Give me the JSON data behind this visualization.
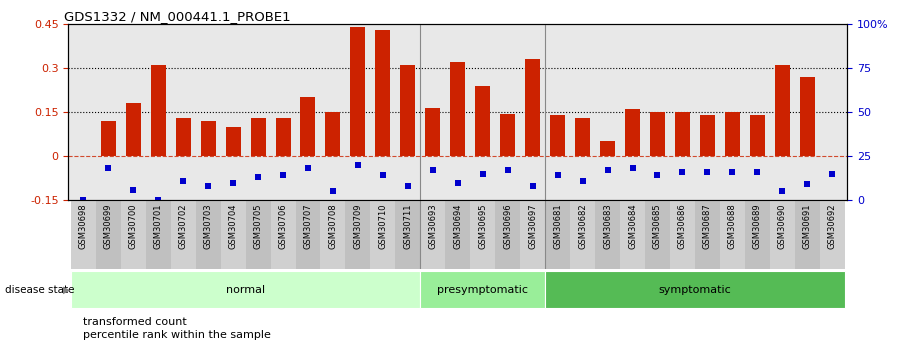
{
  "title": "GDS1332 / NM_000441.1_PROBE1",
  "samples": [
    "GSM30698",
    "GSM30699",
    "GSM30700",
    "GSM30701",
    "GSM30702",
    "GSM30703",
    "GSM30704",
    "GSM30705",
    "GSM30706",
    "GSM30707",
    "GSM30708",
    "GSM30709",
    "GSM30710",
    "GSM30711",
    "GSM30693",
    "GSM30694",
    "GSM30695",
    "GSM30696",
    "GSM30697",
    "GSM30681",
    "GSM30682",
    "GSM30683",
    "GSM30684",
    "GSM30685",
    "GSM30686",
    "GSM30687",
    "GSM30688",
    "GSM30689",
    "GSM30690",
    "GSM30691",
    "GSM30692"
  ],
  "transformed_count": [
    0.0,
    0.12,
    0.18,
    0.31,
    0.13,
    0.12,
    0.1,
    0.13,
    0.13,
    0.2,
    0.15,
    0.44,
    0.43,
    0.31,
    0.165,
    0.32,
    0.24,
    0.145,
    0.33,
    0.14,
    0.13,
    0.05,
    0.16,
    0.15,
    0.15,
    0.14,
    0.15,
    0.14,
    0.31,
    0.27,
    0.0
  ],
  "percentile_rank": [
    0,
    18,
    6,
    0,
    11,
    8,
    10,
    13,
    14,
    18,
    5,
    20,
    14,
    8,
    17,
    10,
    15,
    17,
    8,
    14,
    11,
    17,
    18,
    14,
    16,
    16,
    16,
    16,
    5,
    9,
    15
  ],
  "disease_groups": [
    {
      "label": "normal",
      "start": 0,
      "end": 14,
      "color": "#ccffcc"
    },
    {
      "label": "presymptomatic",
      "start": 14,
      "end": 19,
      "color": "#99ee99"
    },
    {
      "label": "symptomatic",
      "start": 19,
      "end": 31,
      "color": "#55bb55"
    }
  ],
  "bar_color": "#cc2200",
  "dot_color": "#0000cc",
  "left_ylim": [
    -0.15,
    0.45
  ],
  "right_ylim": [
    0,
    100
  ],
  "left_yticks": [
    -0.15,
    0.0,
    0.15,
    0.3,
    0.45
  ],
  "right_yticks": [
    0,
    25,
    50,
    75,
    100
  ],
  "grid_values": [
    0.15,
    0.3
  ],
  "zero_line": 0.0,
  "plot_bg_color": "#e8e8e8",
  "tick_bg_even": "#d0d0d0",
  "tick_bg_odd": "#c0c0c0",
  "legend_items": [
    {
      "label": "transformed count",
      "color": "#cc2200"
    },
    {
      "label": "percentile rank within the sample",
      "color": "#0000cc"
    }
  ]
}
